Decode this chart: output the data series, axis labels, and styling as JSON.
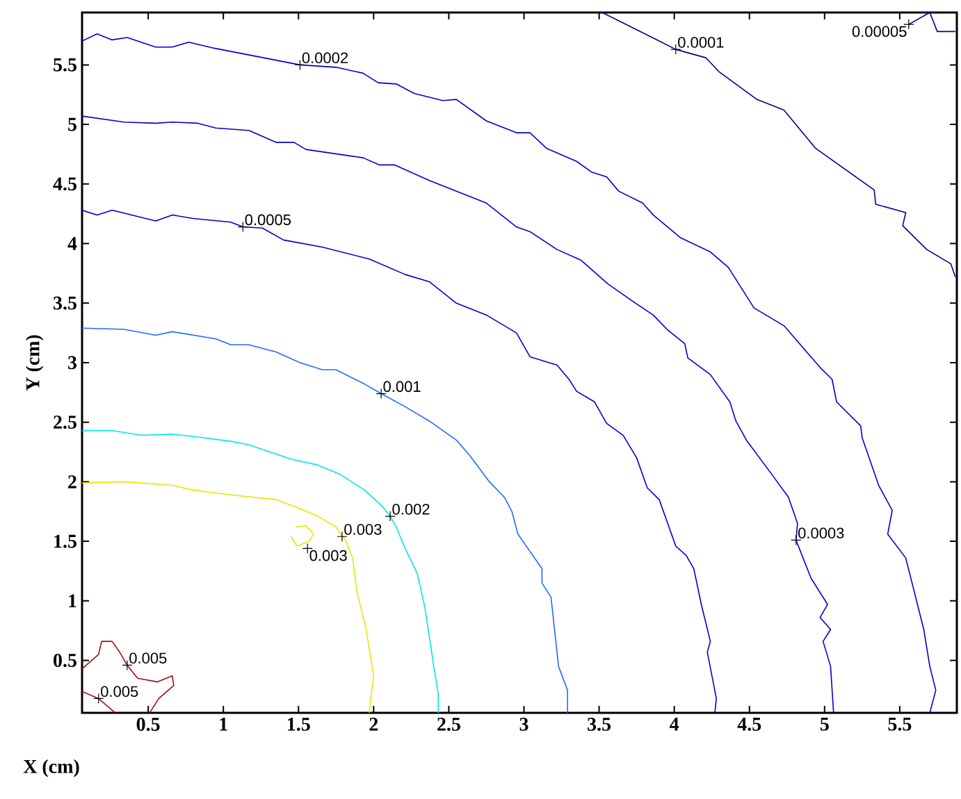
{
  "chart_data": {
    "type": "line",
    "xlabel": "X (cm)",
    "ylabel": "Y (cm)",
    "xlim": [
      0.06,
      5.88
    ],
    "ylim": [
      0.06,
      5.94
    ],
    "xticks": [
      0.5,
      1,
      1.5,
      2,
      2.5,
      3,
      3.5,
      4,
      4.5,
      5,
      5.5
    ],
    "yticks": [
      0.5,
      1,
      1.5,
      2,
      2.5,
      3,
      3.5,
      4,
      4.5,
      5,
      5.5
    ],
    "series": [
      {
        "color": "#00008b",
        "x": [
          3.52,
          3.87,
          4.01,
          4.21,
          4.3,
          4.55,
          4.73,
          4.94,
          5.33,
          5.34,
          5.54,
          5.52,
          5.68,
          5.84,
          5.87
        ],
        "values": [
          5.94,
          5.72,
          5.63,
          5.56,
          5.44,
          5.21,
          5.12,
          4.8,
          4.45,
          4.33,
          4.26,
          4.15,
          3.95,
          3.83,
          3.72
        ]
      },
      {
        "color": "#00008b",
        "x": [
          5.56,
          5.7,
          5.75,
          5.87
        ],
        "values": [
          5.84,
          5.94,
          5.78,
          5.78
        ]
      },
      {
        "color": "#0000cd",
        "x": [
          0.06,
          0.16,
          0.26,
          0.36,
          0.55,
          0.66,
          0.77,
          0.94,
          1.51,
          1.75,
          1.93,
          2.03,
          2.15,
          2.27,
          2.46,
          2.55,
          2.75,
          2.95,
          3.04,
          3.15,
          3.35,
          3.45,
          3.55,
          3.63,
          3.79,
          3.86,
          4.04,
          4.24,
          4.36,
          4.53,
          4.73,
          4.97,
          5.05,
          5.08,
          5.24,
          5.25,
          5.36,
          5.45,
          5.42,
          5.54,
          5.6,
          5.66,
          5.7,
          5.74,
          5.7
        ],
        "values": [
          5.7,
          5.76,
          5.71,
          5.73,
          5.65,
          5.65,
          5.69,
          5.64,
          5.5,
          5.48,
          5.43,
          5.35,
          5.34,
          5.26,
          5.2,
          5.21,
          5.03,
          4.93,
          4.93,
          4.8,
          4.69,
          4.6,
          4.56,
          4.44,
          4.34,
          4.24,
          4.05,
          3.93,
          3.8,
          3.46,
          3.31,
          2.96,
          2.86,
          2.67,
          2.47,
          2.37,
          1.97,
          1.76,
          1.56,
          1.36,
          1.06,
          0.76,
          0.45,
          0.25,
          0.06
        ]
      },
      {
        "color": "#0000cd",
        "x": [
          0.06,
          0.34,
          0.55,
          0.66,
          0.83,
          0.95,
          1.17,
          1.35,
          1.47,
          1.55,
          1.93,
          2.04,
          2.14,
          2.37,
          2.75,
          2.95,
          3.04,
          3.22,
          3.38,
          3.56,
          3.73,
          3.86,
          3.96,
          4.07,
          4.09,
          4.24,
          4.37,
          4.41,
          4.48,
          4.65,
          4.76,
          4.82,
          4.81,
          4.91,
          5.02,
          4.97,
          5.04,
          4.99,
          5.04,
          5.06
        ],
        "values": [
          5.07,
          5.02,
          5.01,
          5.02,
          5.01,
          4.97,
          4.95,
          4.85,
          4.85,
          4.79,
          4.72,
          4.66,
          4.66,
          4.53,
          4.34,
          4.14,
          4.1,
          3.95,
          3.86,
          3.66,
          3.51,
          3.4,
          3.27,
          3.16,
          3.04,
          2.9,
          2.67,
          2.51,
          2.35,
          2.06,
          1.87,
          1.65,
          1.51,
          1.19,
          0.97,
          0.86,
          0.76,
          0.66,
          0.45,
          0.06
        ]
      },
      {
        "color": "#0000cd",
        "x": [
          0.06,
          0.16,
          0.26,
          0.55,
          0.66,
          0.8,
          1.05,
          1.13,
          1.26,
          1.4,
          1.66,
          1.97,
          2.21,
          2.37,
          2.55,
          2.75,
          2.95,
          3.04,
          3.22,
          3.3,
          3.35,
          3.47,
          3.55,
          3.66,
          3.75,
          3.82,
          3.9,
          4.01,
          4.08,
          4.13,
          4.18,
          4.24,
          4.22,
          4.28,
          4.27
        ],
        "values": [
          4.28,
          4.24,
          4.28,
          4.19,
          4.24,
          4.21,
          4.18,
          4.14,
          4.13,
          4.03,
          3.97,
          3.87,
          3.74,
          3.68,
          3.5,
          3.4,
          3.25,
          3.05,
          2.98,
          2.86,
          2.76,
          2.67,
          2.49,
          2.39,
          2.2,
          1.95,
          1.85,
          1.46,
          1.38,
          1.27,
          0.97,
          0.66,
          0.57,
          0.18,
          0.06
        ]
      },
      {
        "color": "#1e6cff",
        "x": [
          0.06,
          0.34,
          0.55,
          0.66,
          0.95,
          1.05,
          1.17,
          1.35,
          1.51,
          1.66,
          1.75,
          1.94,
          2.05,
          2.21,
          2.37,
          2.46,
          2.55,
          2.64,
          2.77,
          2.87,
          2.92,
          2.96,
          3.12,
          3.12,
          3.18,
          3.23,
          3.29,
          3.29
        ],
        "values": [
          3.29,
          3.28,
          3.23,
          3.26,
          3.2,
          3.15,
          3.15,
          3.09,
          3.0,
          2.94,
          2.94,
          2.82,
          2.74,
          2.63,
          2.51,
          2.43,
          2.35,
          2.22,
          2.0,
          1.87,
          1.75,
          1.56,
          1.27,
          1.15,
          1.03,
          0.45,
          0.25,
          0.06
        ]
      },
      {
        "color": "#00e5ee",
        "x": [
          0.06,
          0.26,
          0.46,
          0.66,
          0.8,
          1.05,
          1.17,
          1.45,
          1.63,
          1.78,
          1.94,
          2.06,
          2.11,
          2.15,
          2.21,
          2.29,
          2.34,
          2.4,
          2.43,
          2.43
        ],
        "values": [
          2.43,
          2.43,
          2.39,
          2.4,
          2.38,
          2.34,
          2.31,
          2.19,
          2.14,
          2.06,
          1.93,
          1.79,
          1.71,
          1.62,
          1.44,
          1.23,
          0.95,
          0.45,
          0.22,
          0.06
        ]
      },
      {
        "color": "#e6e600",
        "x": [
          0.06,
          0.34,
          0.66,
          0.8,
          1.05,
          1.35,
          1.48,
          1.63,
          1.75,
          1.79,
          1.81,
          1.86,
          1.89,
          1.95,
          2.0,
          1.97
        ],
        "values": [
          1.99,
          2.0,
          1.97,
          1.93,
          1.89,
          1.85,
          1.79,
          1.71,
          1.62,
          1.54,
          1.52,
          1.36,
          1.07,
          0.76,
          0.37,
          0.06
        ]
      },
      {
        "color": "#e6e600",
        "x": [
          1.48,
          1.55,
          1.6,
          1.57,
          1.49,
          1.45
        ],
        "values": [
          1.62,
          1.63,
          1.56,
          1.5,
          1.46,
          1.54
        ]
      },
      {
        "color": "#a01010",
        "x": [
          0.06,
          0.17,
          0.19,
          0.26,
          0.31,
          0.36,
          0.43,
          0.56,
          0.66,
          0.67,
          0.57,
          0.51
        ],
        "values": [
          0.43,
          0.55,
          0.66,
          0.66,
          0.57,
          0.46,
          0.35,
          0.32,
          0.37,
          0.29,
          0.18,
          0.06
        ]
      },
      {
        "color": "#a01010",
        "x": [
          0.06,
          0.17,
          0.28
        ],
        "values": [
          0.24,
          0.18,
          0.06
        ]
      }
    ],
    "annotations": [
      {
        "text": "0.0001",
        "x": 4.01,
        "y": 5.63
      },
      {
        "text": "0.0002",
        "x": 1.51,
        "y": 5.5
      },
      {
        "text": "0.0005",
        "x": 1.13,
        "y": 4.14
      },
      {
        "text": "0.001",
        "x": 2.05,
        "y": 2.74
      },
      {
        "text": "0.002",
        "x": 2.11,
        "y": 1.71
      },
      {
        "text": "0.003",
        "x": 1.79,
        "y": 1.54
      },
      {
        "text": "0.003",
        "x": 1.56,
        "y": 1.44
      },
      {
        "text": "0.0003",
        "x": 4.81,
        "y": 1.51
      },
      {
        "text": "0.005",
        "x": 0.36,
        "y": 0.46
      },
      {
        "text": "0.005",
        "x": 0.17,
        "y": 0.18
      },
      {
        "text": "0.00005",
        "x": 5.56,
        "y": 5.84
      }
    ]
  }
}
